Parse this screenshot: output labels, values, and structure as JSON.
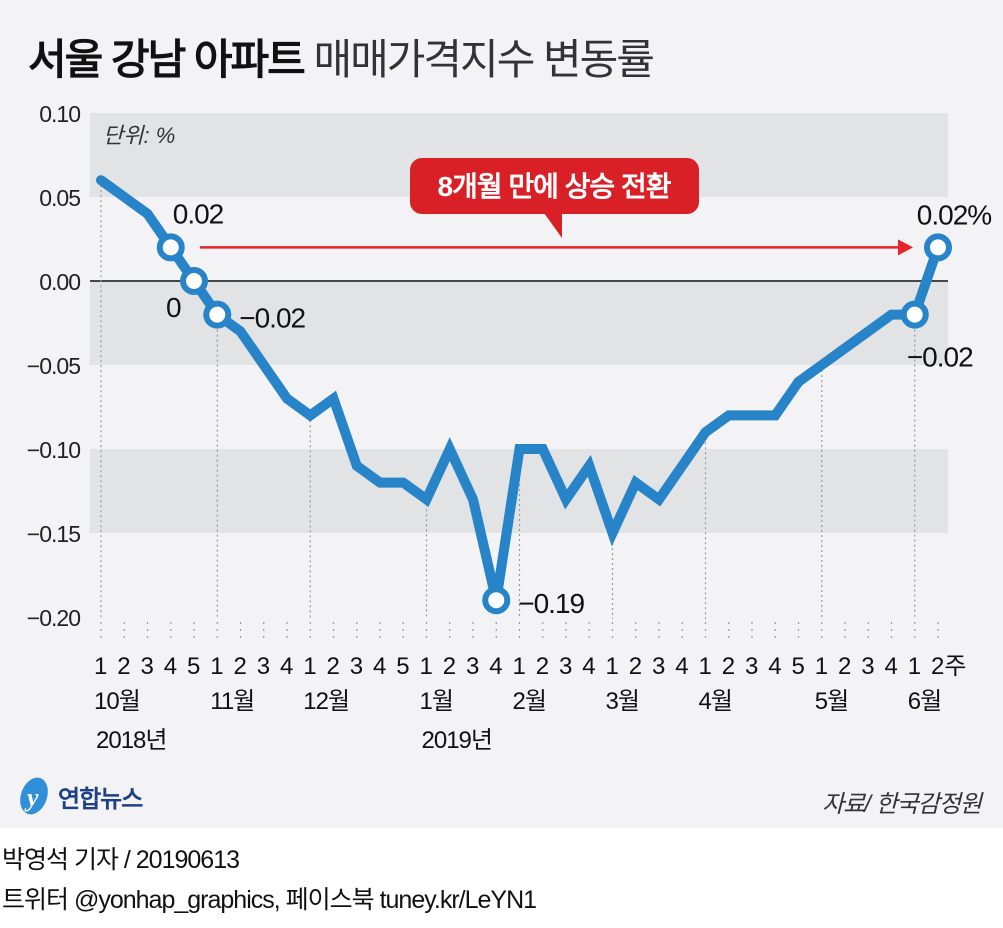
{
  "title": {
    "bold": "서울 강남 아파트",
    "light": "매매가격지수 변동률"
  },
  "unit_label": "단위: %",
  "callout": "8개월 만에 상승 전환",
  "source": "자료/ 한국감정원",
  "logo": "연합뉴스",
  "footer": {
    "line1": "박영석 기자 /  20190613",
    "line2": "트위터 @yonhap_graphics, 페이스북 tuney.kr/LeYN1"
  },
  "colors": {
    "line": "#2884c8",
    "callout": "#d92027",
    "arrow": "#e8232a",
    "band": "#e2e3e5",
    "background": "#f3f3f5"
  },
  "chart_data": {
    "type": "line",
    "title": "서울 강남 아파트 매매가격지수 변동률",
    "ylabel": "단위: %",
    "ylim": [
      -0.2,
      0.1
    ],
    "yticks": [
      "0.10",
      "0.05",
      "0.00",
      "−0.05",
      "−0.10",
      "−0.15",
      "−0.20"
    ],
    "ytick_values": [
      0.1,
      0.05,
      0.0,
      -0.05,
      -0.1,
      -0.15,
      -0.2
    ],
    "x_weeks": [
      "1",
      "2",
      "3",
      "4",
      "5",
      "1",
      "2",
      "3",
      "4",
      "1",
      "2",
      "3",
      "4",
      "5",
      "1",
      "2",
      "3",
      "4",
      "1",
      "2",
      "3",
      "4",
      "1",
      "2",
      "3",
      "4",
      "1",
      "2",
      "3",
      "4",
      "5",
      "1",
      "2",
      "3",
      "4",
      "1",
      "2주"
    ],
    "months": [
      {
        "label": "10월",
        "index": 0
      },
      {
        "label": "11월",
        "index": 5
      },
      {
        "label": "12월",
        "index": 9
      },
      {
        "label": "1월",
        "index": 14
      },
      {
        "label": "2월",
        "index": 18
      },
      {
        "label": "3월",
        "index": 22
      },
      {
        "label": "4월",
        "index": 26
      },
      {
        "label": "5월",
        "index": 31
      },
      {
        "label": "6월",
        "index": 35
      }
    ],
    "years": [
      {
        "label": "2018년",
        "index": 0
      },
      {
        "label": "2019년",
        "index": 14
      }
    ],
    "values": [
      0.06,
      0.05,
      0.04,
      0.02,
      0,
      -0.02,
      -0.03,
      -0.05,
      -0.07,
      -0.08,
      -0.07,
      -0.11,
      -0.12,
      -0.12,
      -0.13,
      -0.1,
      -0.13,
      -0.19,
      -0.1,
      -0.1,
      -0.13,
      -0.11,
      -0.15,
      -0.12,
      -0.13,
      -0.11,
      -0.09,
      -0.08,
      -0.08,
      -0.08,
      -0.06,
      -0.05,
      -0.04,
      -0.03,
      -0.02,
      -0.02,
      0.02
    ],
    "annotations": [
      {
        "index": 3,
        "label": "0.02",
        "pos": "above-right"
      },
      {
        "index": 4,
        "label": "0",
        "pos": "below-left"
      },
      {
        "index": 5,
        "label": "−0.02",
        "pos": "right"
      },
      {
        "index": 17,
        "label": "−0.19",
        "pos": "right"
      },
      {
        "index": 35,
        "label": "−0.02",
        "pos": "below"
      },
      {
        "index": 36,
        "label": "0.02%",
        "pos": "above"
      }
    ],
    "grid": "alternating horizontal bands",
    "legend": "none"
  }
}
